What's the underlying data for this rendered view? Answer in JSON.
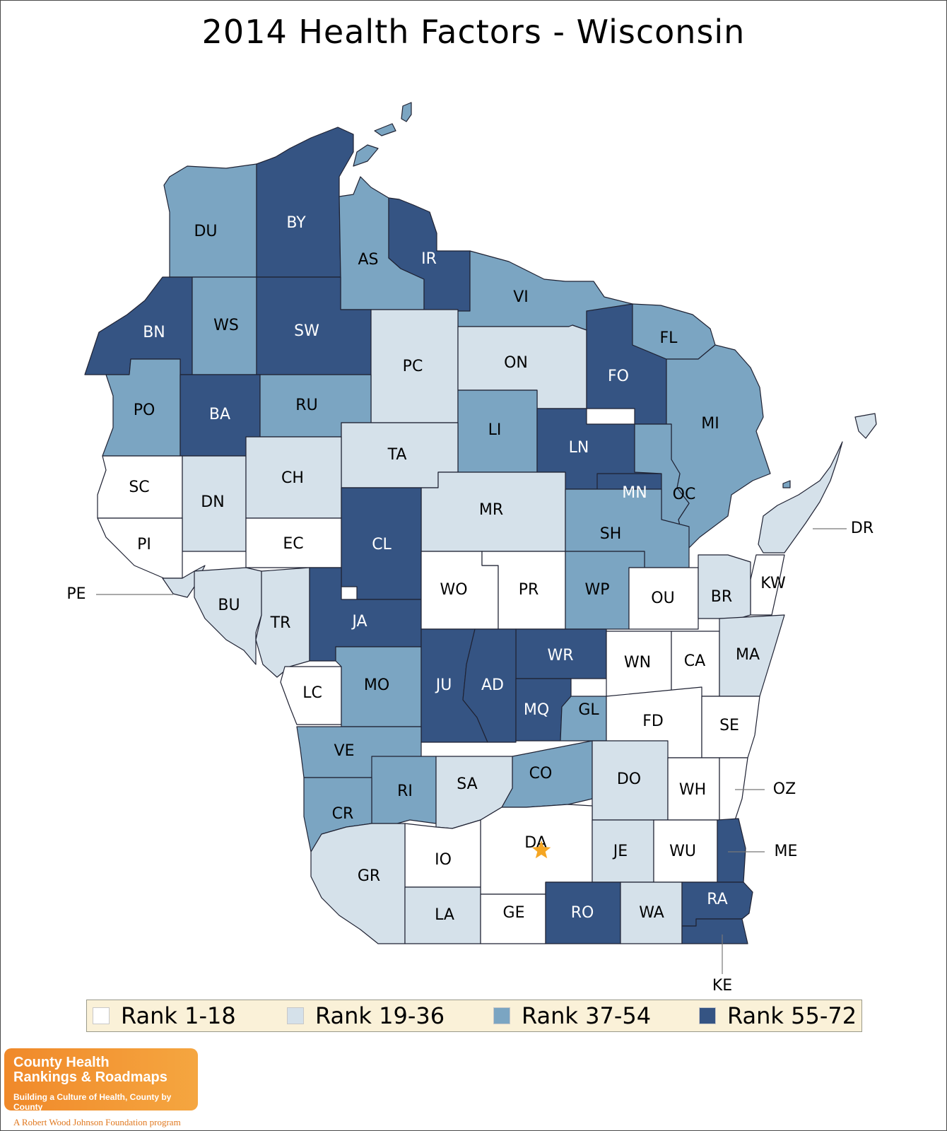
{
  "title": "2014 Health Factors - Wisconsin",
  "colors": {
    "rank_1_18": "#ffffff",
    "rank_19_36": "#d5e1ea",
    "rank_37_54": "#7ba5c2",
    "rank_55_72": "#355483",
    "capital_star": "#f5a623"
  },
  "legend": [
    {
      "label": "Rank 1-18",
      "color": "#ffffff"
    },
    {
      "label": "Rank 19-36",
      "color": "#d5e1ea"
    },
    {
      "label": "Rank 37-54",
      "color": "#7ba5c2"
    },
    {
      "label": "Rank 55-72",
      "color": "#355483"
    }
  ],
  "counties": {
    "DU": "Rank 37-54",
    "BY": "Rank 55-72",
    "AS": "Rank 37-54",
    "IR": "Rank 55-72",
    "VI": "Rank 37-54",
    "BN": "Rank 55-72",
    "WS": "Rank 37-54",
    "SW": "Rank 55-72",
    "PC": "Rank 19-36",
    "ON": "Rank 19-36",
    "FO": "Rank 55-72",
    "FL": "Rank 37-54",
    "PO": "Rank 37-54",
    "BA": "Rank 55-72",
    "RU": "Rank 37-54",
    "LI": "Rank 37-54",
    "LN": "Rank 55-72",
    "MI": "Rank 37-54",
    "TA": "Rank 19-36",
    "SC": "Rank 1-18",
    "DN": "Rank 19-36",
    "CH": "Rank 19-36",
    "MN": "Rank 55-72",
    "OC": "Rank 37-54",
    "MR": "Rank 19-36",
    "PI": "Rank 1-18",
    "EC": "Rank 1-18",
    "CL": "Rank 55-72",
    "SH": "Rank 37-54",
    "DR": "Rank 19-36",
    "KW": "Rank 1-18",
    "PE": "Rank 19-36",
    "BU": "Rank 19-36",
    "TR": "Rank 19-36",
    "JA": "Rank 55-72",
    "WO": "Rank 1-18",
    "PR": "Rank 1-18",
    "WP": "Rank 37-54",
    "OU": "Rank 1-18",
    "BR": "Rank 19-36",
    "WR": "Rank 55-72",
    "WN": "Rank 1-18",
    "CA": "Rank 1-18",
    "MA": "Rank 19-36",
    "LC": "Rank 1-18",
    "MO": "Rank 37-54",
    "JU": "Rank 55-72",
    "AD": "Rank 55-72",
    "MQ": "Rank 55-72",
    "GL": "Rank 37-54",
    "FD": "Rank 1-18",
    "SE": "Rank 1-18",
    "VE": "Rank 37-54",
    "CO": "Rank 37-54",
    "DO": "Rank 19-36",
    "WH": "Rank 1-18",
    "OZ": "Rank 1-18",
    "RI": "Rank 37-54",
    "SA": "Rank 19-36",
    "CR": "Rank 37-54",
    "DA": "Rank 1-18",
    "IO": "Rank 1-18",
    "JE": "Rank 19-36",
    "WU": "Rank 1-18",
    "ME": "Rank 55-72",
    "GR": "Rank 19-36",
    "LA": "Rank 19-36",
    "GE": "Rank 1-18",
    "RO": "Rank 55-72",
    "WA": "Rank 19-36",
    "RA": "Rank 55-72",
    "KE": "Rank 55-72"
  },
  "logo": {
    "line1": "County Health",
    "line2": "Rankings & Roadmaps",
    "tagline": "Building a Culture of Health, County by County",
    "sponsor": "A Robert Wood Johnson Foundation program"
  }
}
